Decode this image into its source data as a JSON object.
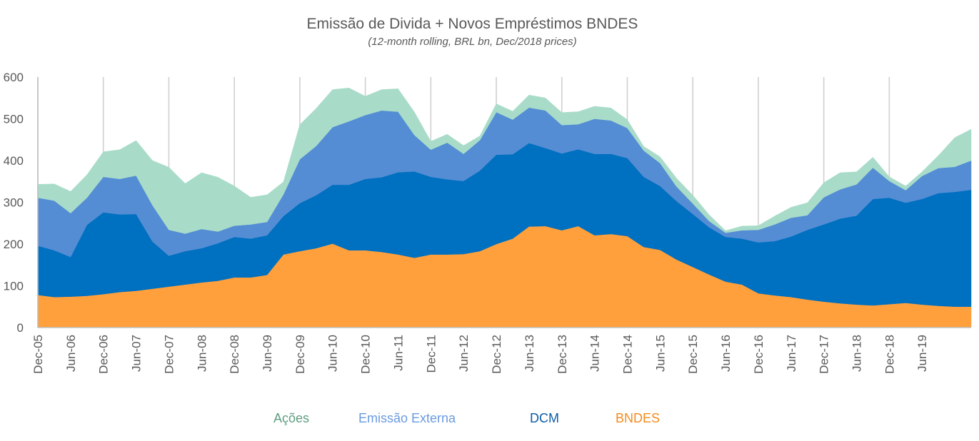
{
  "chart_data": {
    "type": "area",
    "stacked": true,
    "title": "Emissão de Divida + Novos Empréstimos BNDES",
    "subtitle": "(12-month rolling, BRL bn, Dec/2018 prices)",
    "ylim": [
      0,
      600
    ],
    "yticks": [
      0,
      100,
      200,
      300,
      400,
      500,
      600
    ],
    "x": [
      0,
      1,
      2,
      3,
      4,
      5,
      6,
      7,
      8,
      9,
      10,
      11,
      12,
      13,
      14,
      15,
      16,
      17,
      18,
      19,
      20,
      21,
      22,
      23,
      24,
      25,
      26,
      27,
      28,
      29,
      30,
      31,
      32,
      33,
      34,
      35,
      36,
      37,
      38,
      39,
      40,
      41,
      42,
      43,
      44,
      45,
      46,
      47,
      48,
      49,
      50,
      51,
      52,
      53,
      54,
      55,
      56,
      57
    ],
    "xtick_labels": [
      "Dec-05",
      "Jun-06",
      "Dec-06",
      "Jun-07",
      "Dec-07",
      "Jun-08",
      "Dec-08",
      "Jun-09",
      "Dec-09",
      "Jun-10",
      "Dec-10",
      "Jun-11",
      "Dec-11",
      "Jun-12",
      "Dec-12",
      "Jun-13",
      "Dec-13",
      "Jun-14",
      "Dec-14",
      "Jun-15",
      "Dec-15",
      "Jun-16",
      "Dec-16",
      "Jun-17",
      "Dec-17",
      "Jun-18",
      "Dec-18",
      "Jun-19"
    ],
    "gridlines_every_n_labels": 2,
    "legend_position": "bottom",
    "series": [
      {
        "name": "BNDES",
        "color": "#FFA03C",
        "text_color": "#F28C1C",
        "values": [
          78,
          73,
          74,
          76,
          80,
          85,
          88,
          93,
          98,
          103,
          108,
          112,
          120,
          120,
          126,
          175,
          183,
          190,
          201,
          185,
          185,
          181,
          175,
          167,
          175,
          175,
          176,
          183,
          200,
          213,
          242,
          243,
          233,
          243,
          221,
          224,
          219,
          193,
          186,
          163,
          145,
          127,
          110,
          103,
          82,
          77,
          73,
          67,
          62,
          58,
          55,
          53,
          56,
          59,
          55,
          52,
          50,
          50
        ]
      },
      {
        "name": "DCM",
        "color": "#0070C0",
        "text_color": "#0B5CA8",
        "values": [
          118,
          112,
          95,
          170,
          196,
          186,
          184,
          113,
          74,
          80,
          82,
          90,
          97,
          93,
          95,
          92,
          115,
          127,
          141,
          157,
          171,
          179,
          197,
          207,
          186,
          180,
          175,
          193,
          214,
          202,
          200,
          187,
          184,
          184,
          195,
          192,
          187,
          168,
          153,
          140,
          127,
          113,
          107,
          110,
          122,
          130,
          145,
          167,
          185,
          203,
          213,
          255,
          255,
          240,
          253,
          270,
          275,
          280
        ]
      },
      {
        "name": "Emissão Externa",
        "color": "#548DD4",
        "text_color": "#6A9BE0",
        "values": [
          115,
          119,
          105,
          65,
          85,
          85,
          92,
          87,
          62,
          42,
          46,
          28,
          27,
          34,
          32,
          52,
          105,
          118,
          138,
          152,
          153,
          160,
          145,
          87,
          65,
          88,
          65,
          73,
          102,
          83,
          85,
          90,
          68,
          60,
          84,
          80,
          72,
          63,
          55,
          35,
          25,
          15,
          10,
          20,
          30,
          40,
          45,
          35,
          65,
          70,
          75,
          75,
          40,
          30,
          55,
          60,
          60,
          70
        ]
      },
      {
        "name": "Ações",
        "color": "#A8DCC9",
        "text_color": "#5E9E80",
        "values": [
          32,
          40,
          52,
          55,
          60,
          70,
          84,
          107,
          150,
          120,
          135,
          130,
          95,
          65,
          65,
          30,
          83,
          90,
          90,
          80,
          45,
          50,
          55,
          55,
          20,
          20,
          20,
          10,
          20,
          20,
          30,
          30,
          30,
          30,
          30,
          30,
          20,
          10,
          15,
          20,
          20,
          15,
          5,
          10,
          10,
          20,
          25,
          30,
          35,
          40,
          30,
          25,
          10,
          10,
          10,
          30,
          70,
          75
        ]
      }
    ]
  }
}
